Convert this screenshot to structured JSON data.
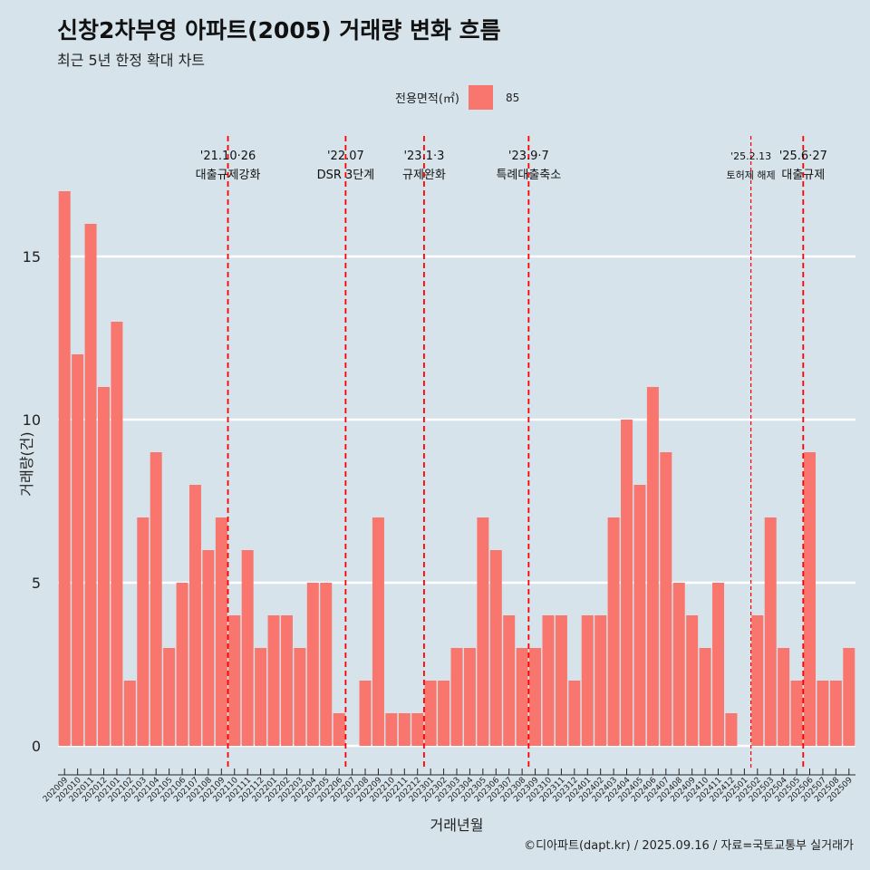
{
  "chart_data": {
    "type": "bar",
    "title": "신창2차부영 아파트(2005) 거래량 변화 흐름",
    "subtitle": "최근 5년 한정 확대 차트",
    "xlabel": "거래년월",
    "ylabel": "거래량(건)",
    "legend": {
      "title": "전용면적(㎡)",
      "placement": "top-center"
    },
    "series": [
      {
        "name": "85",
        "color": "#f8766d"
      }
    ],
    "categories": [
      "202009",
      "202010",
      "202011",
      "202012",
      "202101",
      "202102",
      "202103",
      "202104",
      "202105",
      "202106",
      "202107",
      "202108",
      "202109",
      "202110",
      "202111",
      "202112",
      "202201",
      "202202",
      "202203",
      "202204",
      "202205",
      "202206",
      "202207",
      "202208",
      "202209",
      "202210",
      "202211",
      "202212",
      "202301",
      "202302",
      "202303",
      "202304",
      "202305",
      "202306",
      "202307",
      "202308",
      "202309",
      "202310",
      "202311",
      "202312",
      "202401",
      "202402",
      "202403",
      "202404",
      "202405",
      "202406",
      "202407",
      "202408",
      "202409",
      "202410",
      "202411",
      "202412",
      "202501",
      "202502",
      "202503",
      "202504",
      "202505",
      "202506",
      "202507",
      "202508",
      "202509"
    ],
    "values": [
      17,
      12,
      16,
      11,
      13,
      2,
      7,
      9,
      3,
      5,
      8,
      6,
      7,
      4,
      6,
      3,
      4,
      4,
      3,
      5,
      5,
      1,
      0,
      2,
      7,
      1,
      1,
      1,
      2,
      2,
      3,
      3,
      7,
      6,
      4,
      3,
      3,
      4,
      4,
      2,
      4,
      4,
      7,
      10,
      8,
      11,
      9,
      5,
      4,
      3,
      5,
      1,
      0,
      4,
      7,
      3,
      2,
      9,
      2,
      2,
      3
    ],
    "ylim": [
      0,
      17
    ],
    "yticks": [
      0,
      5,
      10,
      15
    ],
    "grid": true,
    "annotations": [
      {
        "x": "202110",
        "line1": "'21.10·26",
        "line2": "대출규제강화",
        "style": "dashed",
        "size": "normal"
      },
      {
        "x": "202207",
        "line1": "'22.07",
        "line2": "DSR 3단계",
        "style": "dashed",
        "size": "normal"
      },
      {
        "x": "202301",
        "line1": "'23.1·3",
        "line2": "규제완화",
        "style": "dashed",
        "size": "normal"
      },
      {
        "x": "202309",
        "line1": "'23.9·7",
        "line2": "특례대출축소",
        "style": "dashed",
        "size": "normal"
      },
      {
        "x": "202502",
        "line1": "'25.2.13",
        "line2": "토허제 해제",
        "style": "dashed-fine",
        "size": "small"
      },
      {
        "x": "202506",
        "line1": "'25.6·27",
        "line2": "대출규제",
        "style": "dashed",
        "size": "normal"
      }
    ]
  },
  "caption": "©디아파트(dapt.kr) / 2025.09.16 / 자료=국토교통부 실거래가"
}
